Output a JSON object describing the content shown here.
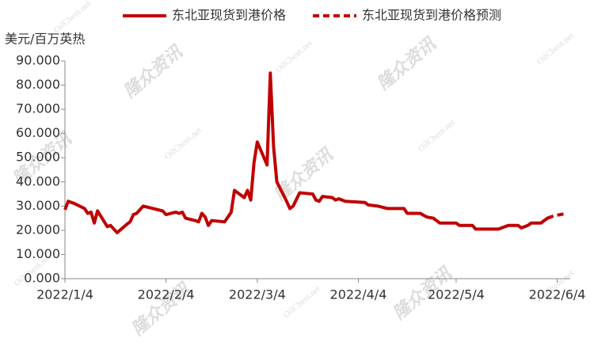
{
  "chart_data": {
    "type": "line",
    "y_label": "美元/百万英热",
    "watermark": [
      "隆众资讯",
      "OilChem.net"
    ],
    "xlim": [
      "2022/1/4",
      "2022/6/8"
    ],
    "xticks": [
      "2022/1/4",
      "2022/2/4",
      "2022/3/4",
      "2022/4/4",
      "2022/5/4",
      "2022/6/4"
    ],
    "ylim": [
      0,
      90
    ],
    "yticks": [
      {
        "value": 0,
        "label": "0.000"
      },
      {
        "value": 10,
        "label": "10.000"
      },
      {
        "value": 20,
        "label": "20.000"
      },
      {
        "value": 30,
        "label": "30.000"
      },
      {
        "value": 40,
        "label": "40.000"
      },
      {
        "value": 50,
        "label": "50.000"
      },
      {
        "value": 60,
        "label": "60.000"
      },
      {
        "value": 70,
        "label": "70.000"
      },
      {
        "value": 80,
        "label": "80.000"
      },
      {
        "value": 90,
        "label": "90.000"
      }
    ],
    "series": [
      {
        "name": "东北亚现货到港价格",
        "color": "#c00000",
        "dash": false,
        "x": [
          "2022/1/4",
          "2022/1/5",
          "2022/1/7",
          "2022/1/10",
          "2022/1/11",
          "2022/1/12",
          "2022/1/13",
          "2022/1/14",
          "2022/1/17",
          "2022/1/18",
          "2022/1/20",
          "2022/1/23",
          "2022/1/24",
          "2022/1/25",
          "2022/1/26",
          "2022/1/28",
          "2022/2/3",
          "2022/2/4",
          "2022/2/7",
          "2022/2/8",
          "2022/2/9",
          "2022/2/10",
          "2022/2/13",
          "2022/2/14",
          "2022/2/15",
          "2022/2/16",
          "2022/2/17",
          "2022/2/18",
          "2022/2/22",
          "2022/2/24",
          "2022/2/25",
          "2022/2/28",
          "2022/3/1",
          "2022/3/2",
          "2022/3/3",
          "2022/3/4",
          "2022/3/7",
          "2022/3/8",
          "2022/3/9",
          "2022/3/10",
          "2022/3/13",
          "2022/3/14",
          "2022/3/15",
          "2022/3/17",
          "2022/3/21",
          "2022/3/22",
          "2022/3/23",
          "2022/3/24",
          "2022/3/27",
          "2022/3/28",
          "2022/3/29",
          "2022/3/31",
          "2022/4/6",
          "2022/4/7",
          "2022/4/10",
          "2022/4/13",
          "2022/4/18",
          "2022/4/19",
          "2022/4/23",
          "2022/4/25",
          "2022/4/27",
          "2022/4/29",
          "2022/5/4",
          "2022/5/5",
          "2022/5/9",
          "2022/5/10",
          "2022/5/17",
          "2022/5/20",
          "2022/5/23",
          "2022/5/24",
          "2022/5/26",
          "2022/5/27",
          "2022/5/30",
          "2022/6/1",
          "2022/6/2"
        ],
        "values": [
          28.5,
          32,
          31,
          29,
          27,
          27.5,
          23,
          28,
          21.5,
          22,
          19,
          22.5,
          23.5,
          26.5,
          27,
          30,
          28,
          26.5,
          27.5,
          27,
          27.5,
          25,
          24,
          23.5,
          27,
          25.5,
          22,
          24,
          23.5,
          27.5,
          36.5,
          33.5,
          36.5,
          32.5,
          48,
          56.5,
          47,
          85,
          54.5,
          40,
          32,
          29,
          30,
          35.5,
          35,
          32.5,
          32,
          34,
          33.5,
          32.5,
          33,
          32,
          31.5,
          30.5,
          30,
          29,
          29,
          27,
          27,
          25.5,
          25,
          23,
          23,
          22,
          22,
          20.5,
          20.5,
          22,
          22,
          21,
          22,
          23,
          23,
          25,
          25.5
        ]
      },
      {
        "name": "东北亚现货到港价格预测",
        "color": "#c00000",
        "dash": true,
        "x": [
          "2022/6/1",
          "2022/6/3",
          "2022/6/5",
          "2022/6/7"
        ],
        "values": [
          25,
          26,
          26.5,
          27
        ]
      }
    ]
  }
}
